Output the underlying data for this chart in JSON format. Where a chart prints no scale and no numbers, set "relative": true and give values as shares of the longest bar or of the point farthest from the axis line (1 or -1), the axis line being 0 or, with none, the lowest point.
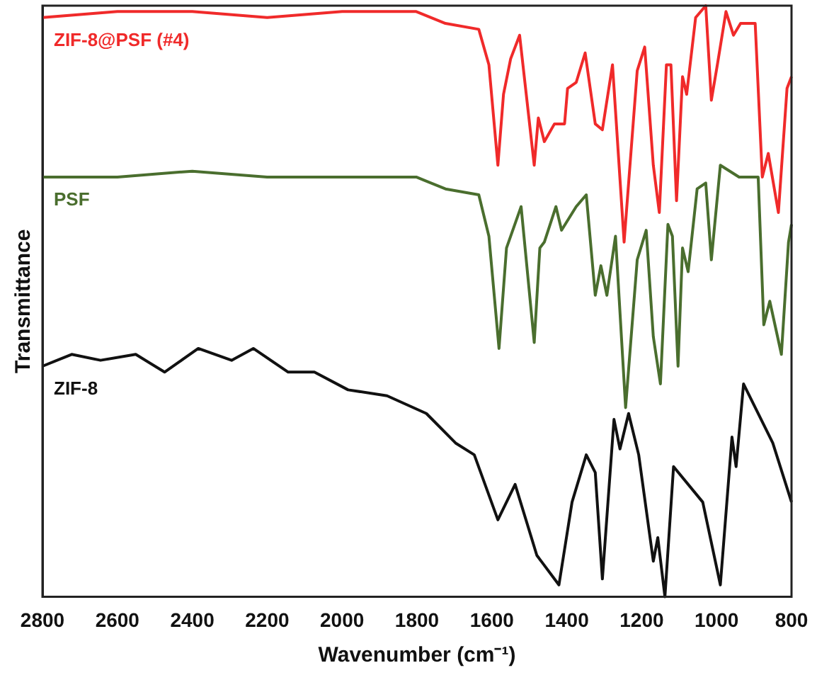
{
  "chart_data": {
    "type": "line",
    "relative": true,
    "xlabel": "Wavenumber (cm⁻¹)",
    "ylabel": "Transmittance",
    "xlim": [
      2800,
      800
    ],
    "xticks": [
      2800,
      2600,
      2400,
      2200,
      2000,
      1800,
      1600,
      1400,
      1200,
      1000,
      800
    ],
    "grid": false,
    "legend": false,
    "marker": "none",
    "line_style": "solid",
    "series": [
      {
        "name": "ZIF-8@PSF (#4)",
        "color": "#f02a2a",
        "x": [
          2800,
          2600,
          2400,
          2200,
          2000,
          1802,
          1724,
          1635,
          1608,
          1584,
          1569,
          1550,
          1526,
          1487,
          1476,
          1460,
          1433,
          1406,
          1398,
          1375,
          1351,
          1324,
          1305,
          1278,
          1247,
          1212,
          1192,
          1169,
          1153,
          1134,
          1122,
          1107,
          1091,
          1080,
          1056,
          1029,
          1014,
          998,
          975,
          955,
          936,
          897,
          878,
          862,
          835,
          812,
          800
        ],
        "values": [
          0.98,
          0.99,
          0.99,
          0.98,
          0.99,
          0.99,
          0.97,
          0.96,
          0.9,
          0.73,
          0.85,
          0.91,
          0.95,
          0.73,
          0.81,
          0.77,
          0.8,
          0.8,
          0.86,
          0.87,
          0.92,
          0.8,
          0.79,
          0.9,
          0.6,
          0.89,
          0.93,
          0.73,
          0.65,
          0.9,
          0.9,
          0.67,
          0.88,
          0.85,
          0.98,
          1.0,
          0.84,
          0.9,
          0.99,
          0.95,
          0.97,
          0.97,
          0.71,
          0.75,
          0.65,
          0.86,
          0.88
        ]
      },
      {
        "name": "PSF",
        "color": "#4a6e2e",
        "x": [
          2800,
          2600,
          2400,
          2200,
          2000,
          1802,
          1724,
          1635,
          1608,
          1581,
          1561,
          1522,
          1487,
          1472,
          1460,
          1429,
          1414,
          1375,
          1348,
          1324,
          1309,
          1293,
          1270,
          1243,
          1212,
          1188,
          1169,
          1150,
          1130,
          1118,
          1103,
          1091,
          1076,
          1052,
          1029,
          1014,
          990,
          940,
          889,
          874,
          858,
          827,
          808,
          800
        ],
        "values": [
          0.71,
          0.71,
          0.72,
          0.71,
          0.71,
          0.71,
          0.69,
          0.68,
          0.61,
          0.42,
          0.59,
          0.66,
          0.43,
          0.59,
          0.6,
          0.66,
          0.62,
          0.66,
          0.68,
          0.51,
          0.56,
          0.51,
          0.61,
          0.32,
          0.57,
          0.62,
          0.44,
          0.36,
          0.63,
          0.61,
          0.39,
          0.59,
          0.55,
          0.69,
          0.7,
          0.57,
          0.73,
          0.71,
          0.71,
          0.46,
          0.5,
          0.41,
          0.6,
          0.63
        ]
      },
      {
        "name": "ZIF-8",
        "color": "#111111",
        "x": [
          2800,
          2722,
          2645,
          2551,
          2474,
          2384,
          2295,
          2237,
          2144,
          2074,
          1984,
          1880,
          1775,
          1697,
          1647,
          1584,
          1538,
          1480,
          1421,
          1386,
          1348,
          1324,
          1305,
          1274,
          1258,
          1235,
          1208,
          1169,
          1157,
          1138,
          1115,
          1037,
          990,
          959,
          948,
          928,
          850,
          800
        ],
        "values": [
          0.39,
          0.41,
          0.4,
          0.41,
          0.38,
          0.42,
          0.4,
          0.42,
          0.38,
          0.38,
          0.35,
          0.34,
          0.31,
          0.26,
          0.24,
          0.13,
          0.19,
          0.07,
          0.02,
          0.16,
          0.24,
          0.21,
          0.03,
          0.3,
          0.25,
          0.31,
          0.24,
          0.06,
          0.1,
          0.0,
          0.22,
          0.16,
          0.02,
          0.27,
          0.22,
          0.36,
          0.26,
          0.16
        ]
      }
    ]
  }
}
